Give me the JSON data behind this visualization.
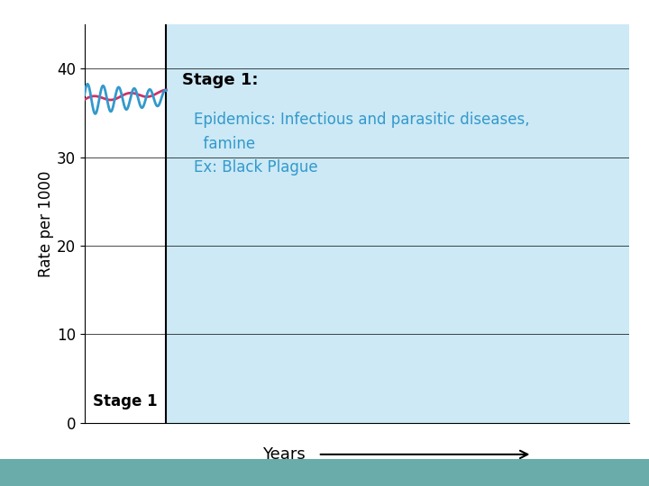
{
  "title_ylabel": "Rate per 1000",
  "xlabel": "Years",
  "ylim": [
    0,
    45
  ],
  "yticks": [
    0,
    10,
    20,
    30,
    40
  ],
  "stage1_label": "Stage 1",
  "stage1_title": "Stage 1:",
  "stage1_body_line1": "Epidemics: Infectious and parasitic diseases,",
  "stage1_body_line2": "  famine",
  "stage1_body_line3": "Ex: Black Plague",
  "bg_color": "#ffffff",
  "stage1_bg_color": "#cce9f5",
  "stage1_text_color": "#3399cc",
  "stage1_title_color": "#000000",
  "birth_rate_color": "#cc3366",
  "death_rate_color": "#3399cc",
  "bottom_bar_color": "#6aacaa",
  "figure_bg": "#ffffff"
}
